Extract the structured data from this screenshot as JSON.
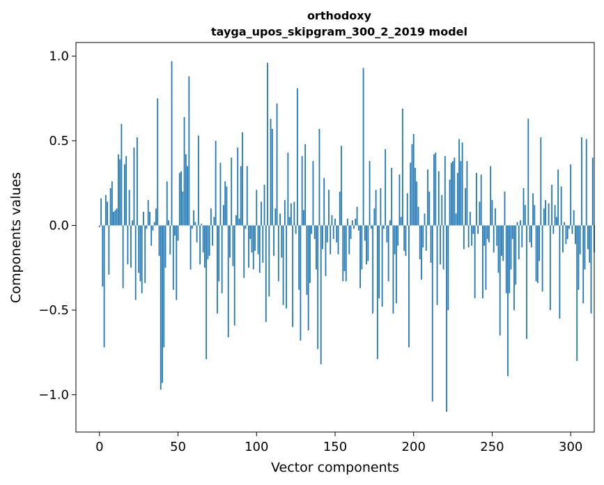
{
  "chart_data": {
    "type": "bar",
    "title": "orthodoxy",
    "subtitle": "tayga_upos_skipgram_300_2_2019 model",
    "xlabel": "Vector components",
    "ylabel": "Components values",
    "xlim": [
      -15,
      315
    ],
    "ylim": [
      -1.22,
      1.08
    ],
    "xticks": [
      0,
      50,
      100,
      150,
      200,
      250,
      300
    ],
    "xtick_labels": [
      "0",
      "50",
      "100",
      "150",
      "200",
      "250",
      "300"
    ],
    "yticks": [
      -1.0,
      -0.5,
      0.0,
      0.5,
      1.0
    ],
    "ytick_labels": [
      "−1.0",
      "−0.5",
      "0.0",
      "0.5",
      "1.0"
    ],
    "grid": false,
    "bar_color": "#1f77b4",
    "values": [
      -0.01,
      0.16,
      -0.36,
      -0.72,
      0.18,
      0.14,
      -0.29,
      0.22,
      0.26,
      0.08,
      0.09,
      0.1,
      0.42,
      0.39,
      0.6,
      -0.37,
      0.36,
      0.41,
      -0.23,
      0.21,
      -0.25,
      0.03,
      0.46,
      -0.44,
      0.52,
      -0.28,
      -0.33,
      -0.4,
      0.08,
      -0.34,
      -0.02,
      0.15,
      0.08,
      -0.12,
      -0.03,
      0.02,
      0.1,
      0.75,
      -0.18,
      -0.97,
      -0.93,
      -0.72,
      -0.25,
      0.26,
      0.03,
      -0.17,
      0.97,
      -0.38,
      -0.06,
      -0.44,
      -0.09,
      0.31,
      0.32,
      0.2,
      0.64,
      0.42,
      0.35,
      0.88,
      -0.26,
      -0.02,
      0.09,
      0.02,
      -0.1,
      0.53,
      -0.23,
      0.01,
      -0.16,
      -0.25,
      -0.79,
      -0.2,
      -0.18,
      0.1,
      -0.12,
      0.05,
      0.5,
      -0.52,
      -0.33,
      0.37,
      -0.4,
      0.12,
      0.26,
      0.23,
      -0.66,
      -0.19,
      0.4,
      -0.24,
      -0.59,
      0.06,
      0.46,
      0.04,
      0.35,
      0.55,
      -0.31,
      -0.02,
      0.35,
      -0.25,
      -0.08,
      -0.16,
      -0.26,
      -0.15,
      0.21,
      -0.17,
      -0.28,
      0.14,
      -0.22,
      0.24,
      -0.57,
      0.96,
      -0.42,
      0.63,
      0.57,
      -0.18,
      0.1,
      0.72,
      -0.33,
      0.07,
      -0.19,
      -0.47,
      0.15,
      -0.49,
      0.43,
      0.05,
      0.13,
      -0.6,
      0.14,
      -0.05,
      0.81,
      -0.38,
      -0.68,
      0.41,
      0.09,
      0.48,
      -0.41,
      -0.62,
      -0.34,
      -0.05,
      0.38,
      -0.08,
      -0.26,
      -0.73,
      0.57,
      -0.82,
      -0.14,
      0.28,
      -0.3,
      -0.1,
      0.21,
      -0.17,
      0.06,
      -0.08,
      0.04,
      -0.1,
      -0.17,
      0.2,
      0.47,
      -0.33,
      -0.27,
      -0.33,
      0.04,
      -0.17,
      -0.08,
      0.03,
      -0.02,
      0.04,
      0.11,
      -0.03,
      -0.37,
      -0.26,
      0.93,
      -0.09,
      -0.23,
      -0.21,
      0.38,
      -0.02,
      -0.52,
      0.1,
      0.21,
      -0.79,
      -0.43,
      0.22,
      -0.48,
      -0.02,
      0.45,
      -0.1,
      -0.33,
      0.03,
      0.34,
      -0.52,
      -0.17,
      -0.46,
      -0.12,
      0.3,
      0.05,
      0.69,
      -0.15,
      -0.18,
      0.19,
      -0.72,
      0.37,
      0.48,
      0.54,
      0.34,
      0.26,
      0.11,
      -0.2,
      -0.32,
      -0.13,
      0.07,
      -0.15,
      0.33,
      0.2,
      -0.22,
      -1.04,
      0.42,
      0.43,
      -0.47,
      0.32,
      -0.23,
      0.18,
      -0.26,
      0.41,
      -1.1,
      -0.5,
      0.27,
      0.37,
      0.38,
      0.4,
      0.07,
      0.31,
      0.51,
      0.38,
      0.49,
      -0.14,
      0.22,
      0.38,
      -0.13,
      0.08,
      -0.12,
      -0.05,
      -0.43,
      0.31,
      -0.05,
      0.14,
      0.3,
      -0.43,
      -0.12,
      -0.38,
      -0.08,
      -0.1,
      0.35,
      0.15,
      -0.16,
      0.1,
      -0.12,
      -0.28,
      -0.65,
      -0.18,
      -0.21,
      0.2,
      -0.4,
      -0.89,
      -0.4,
      -0.26,
      -0.08,
      -0.5,
      -0.35,
      0.02,
      -0.2,
      0.03,
      -0.13,
      0.22,
      0.12,
      -0.67,
      0.63,
      -0.1,
      -0.13,
      0.19,
      0.12,
      -0.33,
      -0.34,
      -0.21,
      0.52,
      -0.39,
      0.1,
      0.15,
      0.0,
      0.13,
      -0.5,
      0.24,
      -0.05,
      0.12,
      0.05,
      0.33,
      -0.55,
      0.23,
      -0.16,
      0.02,
      -0.11,
      -0.08,
      -0.02,
      0.36,
      -0.05,
      0.09,
      -0.11,
      -0.8,
      -0.38,
      -0.17,
      0.52,
      -0.46,
      -0.26,
      0.51,
      -0.14,
      -0.22,
      -0.52,
      0.4,
      -0.16
    ]
  }
}
